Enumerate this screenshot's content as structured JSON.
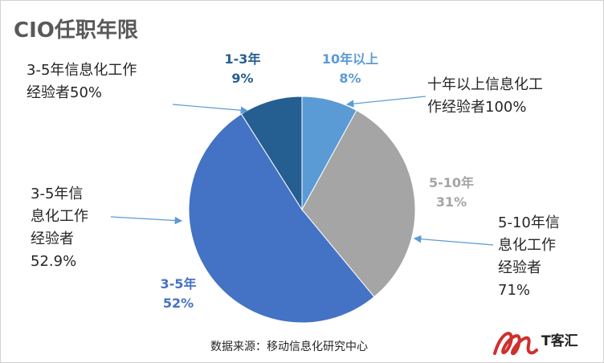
{
  "title": "CIO任职年限",
  "source": "数据来源：移动信息化研究中心",
  "logo_text": "T客汇",
  "chart_data": {
    "type": "pie",
    "slices": [
      {
        "name": "10年以上",
        "value": 8,
        "label": "8%",
        "color": "#5b9bd5"
      },
      {
        "name": "5-10年",
        "value": 31,
        "label": "31%",
        "color": "#a5a5a5"
      },
      {
        "name": "3-5年",
        "value": 52,
        "label": "52%",
        "color": "#4472c4"
      },
      {
        "name": "1-3年",
        "value": 9,
        "label": "9%",
        "color": "#255e91"
      }
    ],
    "annotations": [
      {
        "lines": [
          "3-5年信息化工作",
          "经验者50%"
        ]
      },
      {
        "lines": [
          "十年以上信息化工",
          "作经验者100%"
        ]
      },
      {
        "lines": [
          "3-5年信",
          "息化工作",
          "经验者",
          "52.9%"
        ]
      },
      {
        "lines": [
          "5-10年信",
          "息化工作",
          "经验者",
          "71%"
        ]
      }
    ]
  }
}
